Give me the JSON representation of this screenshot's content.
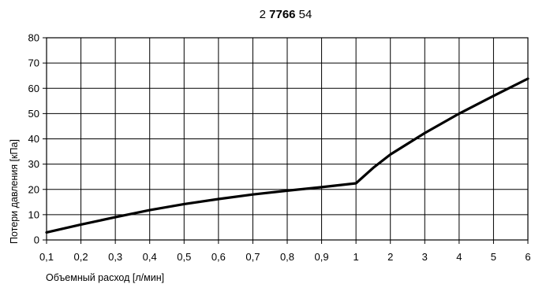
{
  "chart_data": {
    "type": "line",
    "title": {
      "prefix": "2 ",
      "bold": "7766",
      "suffix": " 54"
    },
    "xlabel": "Объемный расход [л/мин]",
    "ylabel": "Потери давления [кПа]",
    "x_ticks": [
      "0,1",
      "0,2",
      "0,3",
      "0,4",
      "0,5",
      "0,6",
      "0,7",
      "0,8",
      "0,9",
      "1",
      "2",
      "3",
      "4",
      "5",
      "6"
    ],
    "y_ticks": [
      "0",
      "10",
      "20",
      "30",
      "40",
      "50",
      "60",
      "70",
      "80"
    ],
    "ylim": [
      0,
      80
    ],
    "grid": true,
    "series": [
      {
        "x": [
          0.1,
          0.2,
          0.3,
          0.4,
          0.5,
          0.6,
          0.7,
          0.8,
          0.9,
          1.0,
          1.5,
          2.0,
          3.0,
          4.0,
          5.0,
          6.0
        ],
        "values": [
          3,
          6.1,
          9,
          11.8,
          14.2,
          16.2,
          18,
          19.5,
          20.9,
          22.4,
          28.5,
          33.8,
          42.3,
          50,
          57,
          63.8
        ]
      }
    ]
  }
}
